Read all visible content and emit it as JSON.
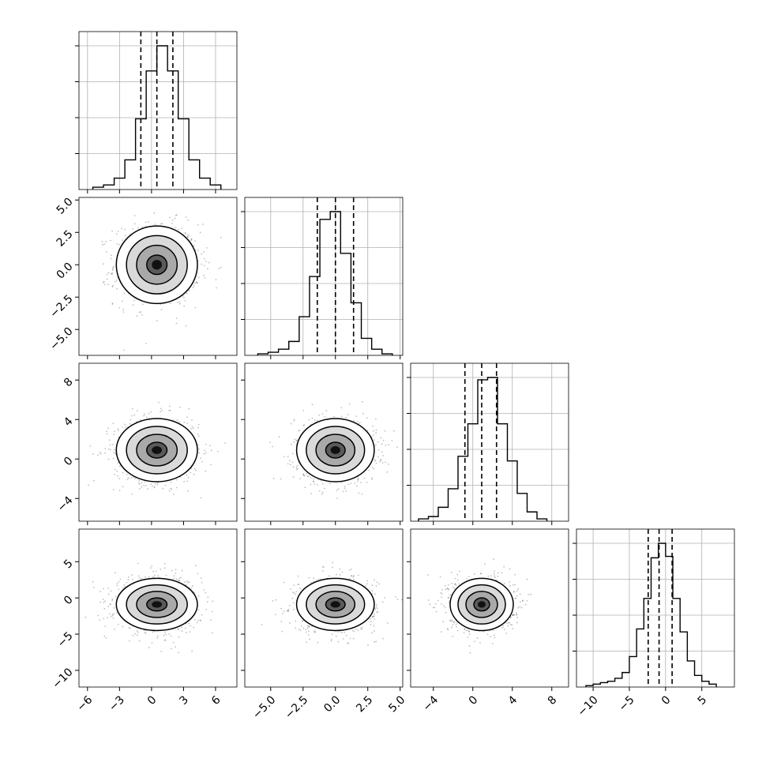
{
  "chart_data": {
    "type": "corner",
    "variables": [
      {
        "range": [
          -6.8,
          8.0
        ],
        "ticks": [
          -6,
          -3,
          0,
          3,
          6
        ],
        "tick_labels": [
          "−6",
          "−3",
          "0",
          "3",
          "6"
        ],
        "median": 0.5,
        "q16": -1.0,
        "q84": 2.0
      },
      {
        "range": [
          -7.0,
          5.2
        ],
        "ticks": [
          -5.0,
          -2.5,
          0.0,
          2.5,
          5.0
        ],
        "tick_labels": [
          "−5.0",
          "−2.5",
          "0.0",
          "2.5",
          "5.0"
        ],
        "median": 0.0,
        "q16": -1.4,
        "q84": 1.4
      },
      {
        "range": [
          -6.3,
          9.7
        ],
        "ticks": [
          -4,
          0,
          4,
          8
        ],
        "tick_labels": [
          "−4",
          "0",
          "4",
          "8"
        ],
        "median": 0.9,
        "q16": -0.8,
        "q84": 2.4
      },
      {
        "range": [
          -12.3,
          9.5
        ],
        "ticks": [
          -10,
          -5,
          0,
          5
        ],
        "tick_labels": [
          "−10",
          "−5",
          "0",
          "5"
        ],
        "median": -0.9,
        "q16": -2.4,
        "q84": 0.9
      }
    ],
    "histograms": [
      {
        "edges": [
          -5.5,
          -4.5,
          -3.5,
          -2.5,
          -1.5,
          -0.5,
          0.5,
          1.5,
          2.5,
          3.5,
          4.5,
          5.5,
          6.5
        ],
        "counts": [
          1,
          2,
          5,
          13,
          31,
          52,
          63,
          52,
          31,
          13,
          5,
          2
        ]
      },
      {
        "edges": [
          -6,
          -5.2,
          -4.4,
          -3.6,
          -2.8,
          -2.0,
          -1.2,
          -0.4,
          0.4,
          1.2,
          2.0,
          2.8,
          3.6,
          4.4
        ],
        "counts": [
          1,
          2,
          4,
          9,
          25,
          51,
          88,
          93,
          66,
          34,
          11,
          4,
          1
        ]
      },
      {
        "edges": [
          -5.5,
          -4.5,
          -3.5,
          -2.5,
          -1.5,
          -0.5,
          0.5,
          1.5,
          2.5,
          3.5,
          4.5,
          5.5,
          6.5,
          7.5
        ],
        "counts": [
          1,
          2,
          6,
          14,
          28,
          42,
          61,
          62,
          42,
          26,
          12,
          4,
          1
        ]
      },
      {
        "edges": [
          -11,
          -10,
          -9,
          -8,
          -7,
          -6,
          -5,
          -4,
          -3,
          -2,
          -1,
          0,
          1,
          2,
          3,
          4,
          5,
          6,
          7
        ],
        "counts": [
          1,
          2,
          3,
          4,
          6,
          10,
          21,
          40,
          61,
          89,
          99,
          90,
          61,
          38,
          18,
          8,
          4,
          2
        ]
      }
    ],
    "pairs": [
      {
        "row": 1,
        "col": 0,
        "cx": 0.5,
        "cy": 0.0,
        "sx": 1.9,
        "sy": 1.5
      },
      {
        "row": 2,
        "col": 0,
        "cx": 0.5,
        "cy": 0.9,
        "sx": 1.9,
        "sy": 1.6
      },
      {
        "row": 2,
        "col": 1,
        "cx": 0.0,
        "cy": 0.9,
        "sx": 1.5,
        "sy": 1.6
      },
      {
        "row": 3,
        "col": 0,
        "cx": 0.5,
        "cy": -0.9,
        "sx": 1.9,
        "sy": 1.8
      },
      {
        "row": 3,
        "col": 1,
        "cx": 0.0,
        "cy": -0.9,
        "sx": 1.5,
        "sy": 1.8
      },
      {
        "row": 3,
        "col": 2,
        "cx": 0.9,
        "cy": -0.9,
        "sx": 1.6,
        "sy": 1.8
      }
    ],
    "contour_levels_sigma": [
      0.5,
      1.0,
      1.5,
      2.0
    ],
    "grid": true,
    "quantile_lines": "dashed",
    "title": "",
    "xlabel": "",
    "ylabel": ""
  }
}
